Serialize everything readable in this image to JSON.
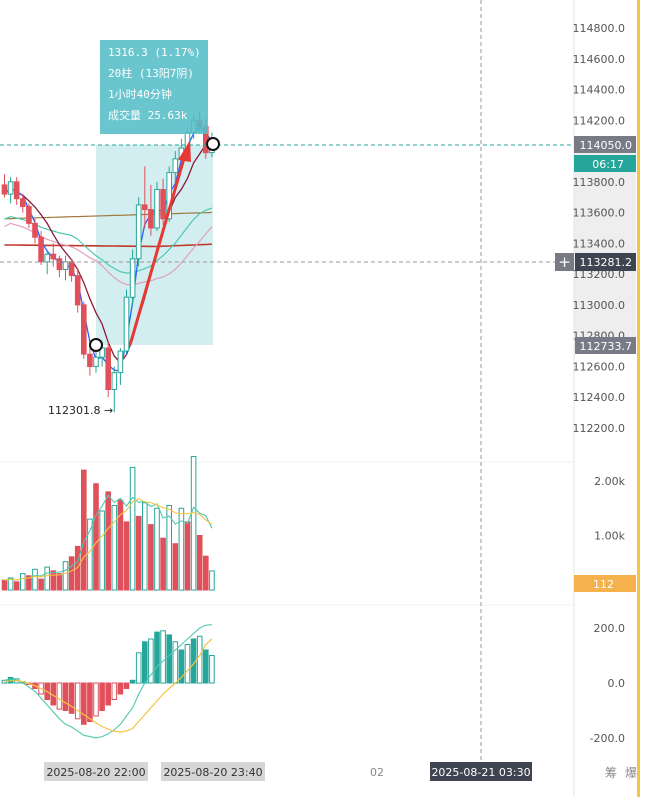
{
  "colors": {
    "up": "#26a69a",
    "down": "#e0505b",
    "accent_line": "#f5c542",
    "selection": "#b6e3e8",
    "tooltip_bg": "#54bdc7",
    "price_tag_bg": "#787b86",
    "countdown_bg": "#26a69a",
    "volume_tag_bg": "#f5b14b",
    "ma_blue": "#2962ff",
    "ma_crimson": "#8b1a3a",
    "ma_brown": "#a0783c",
    "ma_red": "#c0392b",
    "ma_teal": "#4ec9b0",
    "ma_pink": "#e0a0c0"
  },
  "tooltip": {
    "line1": "1316.3 (1.17%)",
    "line2": "20柱 (13阳7阴)",
    "line3": "1小时40分钟",
    "line4": "成交量 25.63k"
  },
  "price_tags": {
    "current_price": "114050.0",
    "countdown": "06:17",
    "crosshair_price": "113281.2",
    "range_low_price": "112733.7",
    "volume_value": "112",
    "low_marker": "112301.8 →"
  },
  "time_tags": {
    "start": "2025-08-20 22:00",
    "end": "2025-08-20 23:40",
    "mid_label": "02",
    "crosshair_time": "2025-08-21 03:30"
  },
  "bottom_right_glyphs": [
    "筹",
    "爆"
  ],
  "chart_data": [
    {
      "type": "candlestick",
      "pane": "price",
      "ylim": [
        112000,
        115000
      ],
      "yticks": [
        "114800.0",
        "114600.0",
        "114400.0",
        "114200.0",
        "113800.0",
        "113600.0",
        "113400.0",
        "113200.0",
        "113000.0",
        "112800.0",
        "112600.0",
        "112400.0",
        "112200.0"
      ],
      "ytick_values": [
        114800,
        114600,
        114400,
        114200,
        113800,
        113600,
        113400,
        113200,
        113000,
        112800,
        112600,
        112400,
        112200
      ],
      "candles": [
        {
          "o": 113780,
          "h": 113850,
          "l": 113700,
          "c": 113720
        },
        {
          "o": 113720,
          "h": 113830,
          "l": 113660,
          "c": 113800
        },
        {
          "o": 113800,
          "h": 113830,
          "l": 113650,
          "c": 113690
        },
        {
          "o": 113690,
          "h": 113720,
          "l": 113600,
          "c": 113640
        },
        {
          "o": 113640,
          "h": 113660,
          "l": 113500,
          "c": 113530
        },
        {
          "o": 113530,
          "h": 113560,
          "l": 113400,
          "c": 113440
        },
        {
          "o": 113440,
          "h": 113480,
          "l": 113260,
          "c": 113280
        },
        {
          "o": 113280,
          "h": 113350,
          "l": 113200,
          "c": 113330
        },
        {
          "o": 113330,
          "h": 113400,
          "l": 113250,
          "c": 113300
        },
        {
          "o": 113300,
          "h": 113320,
          "l": 113180,
          "c": 113230
        },
        {
          "o": 113230,
          "h": 113320,
          "l": 113160,
          "c": 113280
        },
        {
          "o": 113280,
          "h": 113300,
          "l": 113150,
          "c": 113190
        },
        {
          "o": 113190,
          "h": 113240,
          "l": 112950,
          "c": 113000
        },
        {
          "o": 113000,
          "h": 113020,
          "l": 112650,
          "c": 112680
        },
        {
          "o": 112680,
          "h": 112720,
          "l": 112540,
          "c": 112600
        },
        {
          "o": 112600,
          "h": 112700,
          "l": 112560,
          "c": 112660
        },
        {
          "o": 112660,
          "h": 112760,
          "l": 112600,
          "c": 112720
        },
        {
          "o": 112720,
          "h": 112760,
          "l": 112400,
          "c": 112450
        },
        {
          "o": 112450,
          "h": 112600,
          "l": 112301.8,
          "c": 112560
        },
        {
          "o": 112560,
          "h": 112720,
          "l": 112480,
          "c": 112700
        },
        {
          "o": 112700,
          "h": 113100,
          "l": 112680,
          "c": 113050
        },
        {
          "o": 113050,
          "h": 113360,
          "l": 113000,
          "c": 113300
        },
        {
          "o": 113300,
          "h": 113700,
          "l": 113250,
          "c": 113650
        },
        {
          "o": 113650,
          "h": 113900,
          "l": 113500,
          "c": 113620
        },
        {
          "o": 113620,
          "h": 113780,
          "l": 113450,
          "c": 113500
        },
        {
          "o": 113500,
          "h": 113800,
          "l": 113480,
          "c": 113750
        },
        {
          "o": 113750,
          "h": 113820,
          "l": 113520,
          "c": 113560
        },
        {
          "o": 113560,
          "h": 113900,
          "l": 113540,
          "c": 113860
        },
        {
          "o": 113860,
          "h": 114000,
          "l": 113780,
          "c": 113950
        },
        {
          "o": 113950,
          "h": 114080,
          "l": 113900,
          "c": 114020
        },
        {
          "o": 114020,
          "h": 114150,
          "l": 113960,
          "c": 114120
        },
        {
          "o": 114120,
          "h": 114240,
          "l": 114080,
          "c": 114200
        },
        {
          "o": 114200,
          "h": 114260,
          "l": 114120,
          "c": 114160
        },
        {
          "o": 114160,
          "h": 114220,
          "l": 113950,
          "c": 113990
        },
        {
          "o": 113990,
          "h": 114120,
          "l": 113960,
          "c": 114050
        }
      ]
    },
    {
      "type": "bar",
      "pane": "volume",
      "ylim": [
        0,
        2500
      ],
      "yticks": [
        "2.00k",
        "1.00k"
      ],
      "ytick_values": [
        2000,
        1000
      ],
      "values": [
        180,
        220,
        150,
        300,
        260,
        380,
        200,
        420,
        350,
        300,
        520,
        610,
        800,
        2200,
        1300,
        1950,
        1450,
        1800,
        1550,
        1650,
        1250,
        2250,
        1350,
        1600,
        1200,
        1500,
        950,
        1550,
        850,
        1500,
        1250,
        2450,
        1000,
        620,
        350
      ],
      "dir": [
        "d",
        "u",
        "d",
        "u",
        "d",
        "u",
        "d",
        "u",
        "d",
        "d",
        "u",
        "d",
        "d",
        "d",
        "u",
        "d",
        "u",
        "d",
        "u",
        "d",
        "d",
        "u",
        "d",
        "u",
        "d",
        "u",
        "d",
        "u",
        "d",
        "u",
        "d",
        "u",
        "d",
        "d",
        "u"
      ]
    },
    {
      "type": "bar",
      "pane": "macd",
      "ylim": [
        -250,
        300
      ],
      "yticks": [
        "200.0",
        "0.0",
        "-200.0"
      ],
      "ytick_values": [
        200,
        0,
        -200
      ],
      "values": [
        10,
        20,
        15,
        5,
        -5,
        -20,
        -40,
        -60,
        -80,
        -95,
        -100,
        -110,
        -130,
        -150,
        -140,
        -120,
        -100,
        -80,
        -60,
        -40,
        -20,
        10,
        110,
        150,
        160,
        185,
        190,
        175,
        150,
        120,
        140,
        160,
        170,
        120,
        100
      ],
      "dif": [
        10,
        15,
        10,
        0,
        -15,
        -30,
        -55,
        -80,
        -105,
        -130,
        -150,
        -160,
        -175,
        -190,
        -195,
        -200,
        -195,
        -185,
        -170,
        -150,
        -120,
        -90,
        -40,
        0,
        30,
        60,
        80,
        100,
        120,
        140,
        160,
        180,
        200,
        210,
        212
      ],
      "dea": [
        5,
        8,
        8,
        5,
        -2,
        -10,
        -20,
        -32,
        -45,
        -58,
        -72,
        -85,
        -100,
        -115,
        -130,
        -145,
        -158,
        -168,
        -175,
        -178,
        -175,
        -165,
        -140,
        -115,
        -90,
        -65,
        -40,
        -20,
        0,
        20,
        45,
        70,
        100,
        140,
        160
      ]
    }
  ]
}
